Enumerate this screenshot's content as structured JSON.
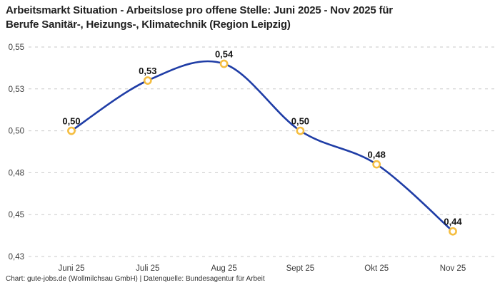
{
  "header": {
    "title_line1": "Arbeitsmarkt Situation - Arbeitslose pro offene Stelle: Juni 2025 - Nov 2025 für",
    "title_line2": "Berufe Sanitär-, Heizungs-, Klimatechnik (Region Leipzig)"
  },
  "chart_data": {
    "type": "line",
    "title": "Arbeitsmarkt Situation - Arbeitslose pro offene Stelle: Juni 2025 - Nov 2025 für Berufe Sanitär-, Heizungs-, Klimatechnik (Region Leipzig)",
    "categories": [
      "Juni 25",
      "Juli 25",
      "Aug 25",
      "Sept 25",
      "Okt 25",
      "Nov 25"
    ],
    "values": [
      0.5,
      0.53,
      0.54,
      0.5,
      0.48,
      0.44
    ],
    "point_labels": [
      "0,50",
      "0,53",
      "0,54",
      "0,50",
      "0,48",
      "0,44"
    ],
    "ylim": [
      0.425,
      0.55
    ],
    "yticks": {
      "values": [
        0.55,
        0.525,
        0.5,
        0.475,
        0.45,
        0.425
      ],
      "labels": [
        "0,55",
        "0,53",
        "0,50",
        "0,48",
        "0,45",
        "0,43"
      ]
    },
    "xlabel": "",
    "ylabel": "",
    "legend": "none",
    "grid": "horizontal-dashed",
    "line_smooth": true,
    "colors": {
      "line": "#1f3da6",
      "marker_ring": "#f5be41",
      "marker_fill": "#ffffff",
      "gridline": "#c9c9c9",
      "tick_label": "#3c3c3c",
      "point_label": "#141414",
      "background": "#ffffff"
    }
  },
  "footer": {
    "credit": "Chart: gute-jobs.de (Wollmilchsau GmbH) | Datenquelle: Bundesagentur für Arbeit"
  }
}
